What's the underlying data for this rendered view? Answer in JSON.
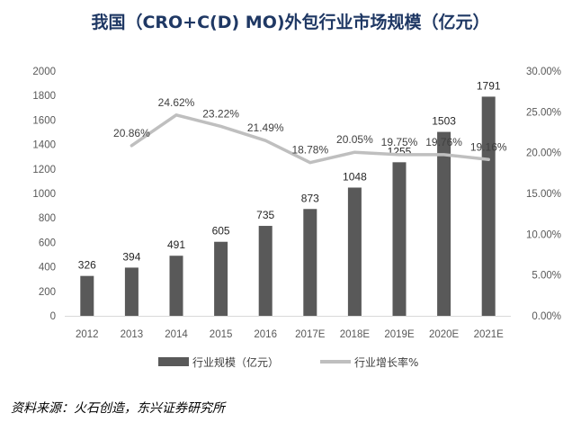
{
  "chart_data": {
    "type": "bar+line",
    "title": "我国（CRO+C(D) MO)外包行业市场规模（亿元）",
    "categories": [
      "2012",
      "2013",
      "2014",
      "2015",
      "2016",
      "2017E",
      "2018E",
      "2019E",
      "2020E",
      "2021E"
    ],
    "series": [
      {
        "name": "行业规模（亿元）",
        "type": "bar",
        "axis": "left",
        "color": "#595959",
        "values": [
          326,
          394,
          491,
          605,
          735,
          873,
          1048,
          1255,
          1503,
          1791
        ],
        "labels": [
          "326",
          "394",
          "491",
          "605",
          "735",
          "873",
          "1048",
          "1255",
          "1503",
          "1791"
        ]
      },
      {
        "name": "行业增长率%",
        "type": "line",
        "axis": "right",
        "color": "#bfbfbf",
        "values": [
          null,
          20.86,
          24.62,
          23.22,
          21.49,
          18.78,
          20.05,
          19.75,
          19.76,
          19.16
        ],
        "labels": [
          "",
          "20.86%",
          "24.62%",
          "23.22%",
          "21.49%",
          "18.78%",
          "20.05%",
          "19.75%",
          "19.76%",
          "19.16%"
        ]
      }
    ],
    "y_left": {
      "range": [
        0,
        2000
      ],
      "ticks": [
        0,
        200,
        400,
        600,
        800,
        1000,
        1200,
        1400,
        1600,
        1800,
        2000
      ],
      "tick_labels": [
        "0",
        "200",
        "400",
        "600",
        "800",
        "1000",
        "1200",
        "1400",
        "1600",
        "1800",
        "2000"
      ]
    },
    "y_right": {
      "range": [
        0,
        30
      ],
      "ticks": [
        0,
        5,
        10,
        15,
        20,
        25,
        30
      ],
      "tick_labels": [
        "0.00%",
        "5.00%",
        "10.00%",
        "15.00%",
        "20.00%",
        "25.00%",
        "30.00%"
      ]
    },
    "grid": false,
    "legend": "bottom"
  },
  "source": "资料来源：火石创造，东兴证券研究所"
}
